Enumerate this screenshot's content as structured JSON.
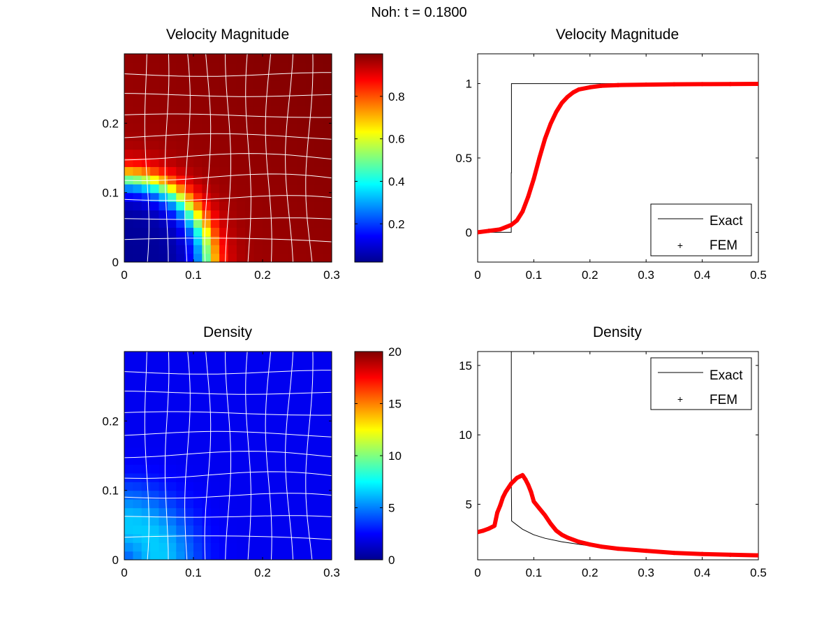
{
  "figure_title": "Noh: t = 0.1800",
  "chart_data": [
    {
      "id": "velocity-field",
      "type": "heatmap",
      "title": "Velocity Magnitude",
      "xlim": [
        0,
        0.3
      ],
      "ylim": [
        0,
        0.3
      ],
      "xticks": [
        0,
        0.1,
        0.2,
        0.3
      ],
      "xtick_labels": [
        "0",
        "0.1",
        "0.2",
        "0.3"
      ],
      "yticks": [
        0,
        0.1,
        0.2
      ],
      "ytick_labels": [
        "0",
        "0.1",
        "0.2"
      ],
      "colormap": "jet",
      "clim": [
        0.02,
        1.0
      ],
      "colorbar_ticks": [
        0.2,
        0.4,
        0.6,
        0.8
      ],
      "colorbar_labels": [
        "0.2",
        "0.4",
        "0.6",
        "0.8"
      ],
      "field": {
        "shock_radius": 0.12,
        "inner_value": 0.04,
        "outer_value": 0.96
      },
      "mesh_color": "#ffffff",
      "grid": false
    },
    {
      "id": "velocity-profile",
      "type": "line",
      "title": "Velocity Magnitude",
      "xlim": [
        0,
        0.5
      ],
      "ylim": [
        -0.2,
        1.2
      ],
      "xticks": [
        0,
        0.1,
        0.2,
        0.3,
        0.4,
        0.5
      ],
      "xtick_labels": [
        "0",
        "0.1",
        "0.2",
        "0.3",
        "0.4",
        "0.5"
      ],
      "yticks": [
        0,
        0.5,
        1
      ],
      "ytick_labels": [
        "0",
        "0.5",
        "1"
      ],
      "legend_position": "bottom-right",
      "series": [
        {
          "name": "Exact",
          "style": "line",
          "color": "#000000",
          "x": [
            0,
            0.0598,
            0.0598,
            0.0602,
            0.0602,
            0.5
          ],
          "y": [
            0,
            0,
            0.4,
            0.4,
            1,
            1
          ]
        },
        {
          "name": "FEM",
          "style": "scatter",
          "color": "#ff0000",
          "x": [
            0,
            0.02,
            0.04,
            0.06,
            0.07,
            0.08,
            0.09,
            0.1,
            0.11,
            0.12,
            0.13,
            0.14,
            0.15,
            0.16,
            0.17,
            0.18,
            0.2,
            0.22,
            0.25,
            0.3,
            0.35,
            0.4,
            0.45,
            0.5
          ],
          "y": [
            0,
            0.01,
            0.02,
            0.05,
            0.08,
            0.14,
            0.24,
            0.36,
            0.5,
            0.63,
            0.73,
            0.81,
            0.87,
            0.91,
            0.94,
            0.96,
            0.975,
            0.985,
            0.99,
            0.993,
            0.995,
            0.996,
            0.997,
            0.998
          ]
        }
      ]
    },
    {
      "id": "density-field",
      "type": "heatmap",
      "title": "Density",
      "xlim": [
        0,
        0.3
      ],
      "ylim": [
        0,
        0.3
      ],
      "xticks": [
        0,
        0.1,
        0.2,
        0.3
      ],
      "xtick_labels": [
        "0",
        "0.1",
        "0.2",
        "0.3"
      ],
      "yticks": [
        0,
        0.1,
        0.2
      ],
      "ytick_labels": [
        "0",
        "0.1",
        "0.2"
      ],
      "colormap": "jet",
      "clim": [
        0,
        20
      ],
      "colorbar_ticks": [
        0,
        5,
        10,
        15,
        20
      ],
      "colorbar_labels": [
        "0",
        "5",
        "10",
        "15",
        "20"
      ],
      "field": {
        "peak_value": 6.5,
        "background_value": 2.2
      },
      "mesh_color": "#ffffff",
      "grid": false
    },
    {
      "id": "density-profile",
      "type": "line",
      "title": "Density",
      "xlim": [
        0,
        0.5
      ],
      "ylim": [
        1,
        16
      ],
      "xticks": [
        0,
        0.1,
        0.2,
        0.3,
        0.4,
        0.5
      ],
      "xtick_labels": [
        "0",
        "0.1",
        "0.2",
        "0.3",
        "0.4",
        "0.5"
      ],
      "yticks": [
        5,
        10,
        15
      ],
      "ytick_labels": [
        "5",
        "10",
        "15"
      ],
      "legend_position": "top-right",
      "series": [
        {
          "name": "Exact",
          "style": "line",
          "color": "#000000",
          "x": [
            0.06,
            0.06,
            0.0605,
            0.0605,
            0.07,
            0.08,
            0.1,
            0.12,
            0.15,
            0.2,
            0.25,
            0.3,
            0.35,
            0.4,
            0.45,
            0.5
          ],
          "y": [
            16,
            6.5,
            4.5,
            3.8,
            3.5,
            3.2,
            2.8,
            2.55,
            2.3,
            2.0,
            1.8,
            1.65,
            1.55,
            1.45,
            1.4,
            1.35
          ]
        },
        {
          "name": "FEM",
          "style": "scatter",
          "color": "#ff0000",
          "x": [
            0,
            0.01,
            0.02,
            0.03,
            0.035,
            0.04,
            0.045,
            0.05,
            0.055,
            0.06,
            0.065,
            0.07,
            0.075,
            0.08,
            0.085,
            0.09,
            0.095,
            0.1,
            0.11,
            0.12,
            0.13,
            0.14,
            0.15,
            0.16,
            0.18,
            0.2,
            0.22,
            0.25,
            0.3,
            0.35,
            0.4,
            0.45,
            0.5
          ],
          "y": [
            3.0,
            3.1,
            3.25,
            3.45,
            4.4,
            4.9,
            5.5,
            5.9,
            6.2,
            6.5,
            6.7,
            6.9,
            7.0,
            7.1,
            6.8,
            6.4,
            5.9,
            5.2,
            4.7,
            4.2,
            3.6,
            3.1,
            2.8,
            2.6,
            2.3,
            2.1,
            1.95,
            1.8,
            1.65,
            1.5,
            1.42,
            1.36,
            1.32
          ]
        }
      ]
    }
  ]
}
